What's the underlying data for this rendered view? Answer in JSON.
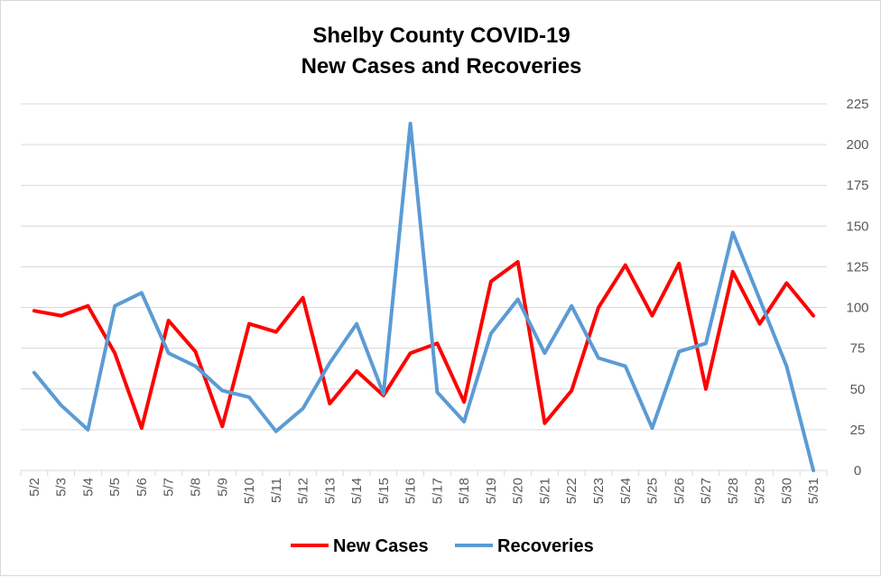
{
  "chart_data": {
    "type": "line",
    "title": "Shelby County COVID-19",
    "subtitle": "New Cases and Recoveries",
    "xlabel": "",
    "ylabel": "",
    "ylim": [
      0,
      225
    ],
    "y_axis_side": "right",
    "yticks": [
      0,
      25,
      50,
      75,
      100,
      125,
      150,
      175,
      200,
      225
    ],
    "grid": true,
    "legend_position": "bottom",
    "categories": [
      "5/2",
      "5/3",
      "5/4",
      "5/5",
      "5/6",
      "5/7",
      "5/8",
      "5/9",
      "5/10",
      "5/11",
      "5/12",
      "5/13",
      "5/14",
      "5/15",
      "5/16",
      "5/17",
      "5/18",
      "5/19",
      "5/20",
      "5/21",
      "5/22",
      "5/23",
      "5/24",
      "5/25",
      "5/26",
      "5/27",
      "5/28",
      "5/29",
      "5/30",
      "5/31"
    ],
    "series": [
      {
        "name": "New Cases",
        "color": "#ff0000",
        "values": [
          98,
          95,
          101,
          72,
          26,
          92,
          73,
          27,
          90,
          85,
          106,
          41,
          61,
          46,
          72,
          78,
          42,
          116,
          128,
          29,
          49,
          100,
          126,
          95,
          127,
          50,
          122,
          90,
          115,
          95
        ]
      },
      {
        "name": "Recoveries",
        "color": "#5b9bd5",
        "values": [
          60,
          40,
          25,
          101,
          109,
          72,
          64,
          49,
          45,
          24,
          38,
          66,
          90,
          47,
          213,
          48,
          30,
          84,
          105,
          72,
          101,
          69,
          64,
          26,
          73,
          78,
          146,
          105,
          64,
          0
        ]
      }
    ]
  }
}
